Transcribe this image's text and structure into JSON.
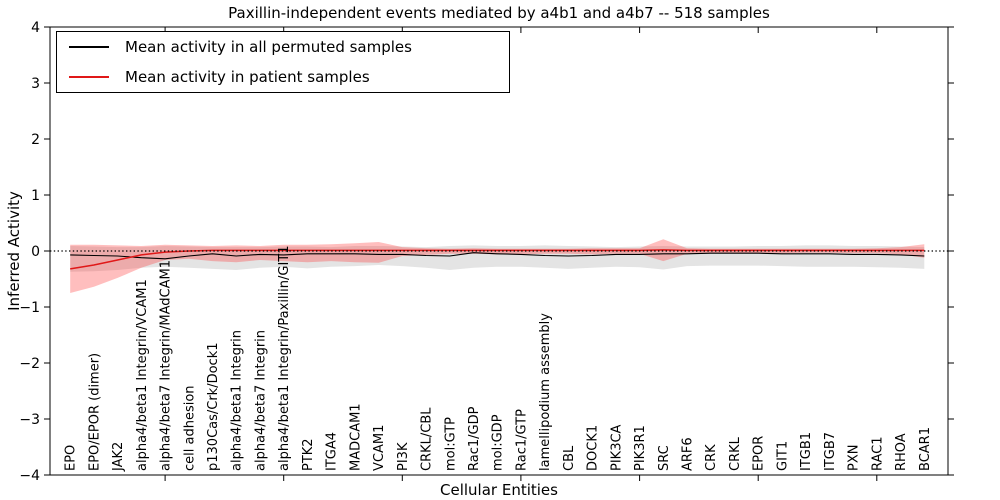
{
  "title": "Paxillin-independent events mediated by a4b1 and a4b7 -- 518 samples",
  "legend": {
    "items": [
      {
        "label": "Mean activity in all permuted samples",
        "color": "#000000"
      },
      {
        "label": "Mean activity in patient samples",
        "color": "#e01818"
      }
    ]
  },
  "chart_data": {
    "type": "line",
    "title": "Paxillin-independent events mediated by a4b1 and a4b7 -- 518 samples",
    "xlabel": "Cellular Entities",
    "ylabel": "Inferred Activity",
    "ylim": [
      -4,
      4
    ],
    "ytick_labels": [
      "4",
      "3",
      "2",
      "1",
      "0",
      "−1",
      "−2",
      "−3",
      "−4"
    ],
    "ytick_values": [
      4,
      3,
      2,
      1,
      0,
      -1,
      -2,
      -3,
      -4
    ],
    "xtick_marker_indices": [
      4,
      9,
      14,
      19,
      24,
      29,
      34
    ],
    "grid": false,
    "legend_position": "upper left",
    "zero_line": {
      "y": 0,
      "style": "dotted",
      "color": "#000000"
    },
    "categories": [
      "EPO",
      "EPO/EPOR (dimer)",
      "JAK2",
      "alpha4/beta1 Integrin/VCAM1",
      "alpha4/beta7 Integrin/MAdCAM1",
      "cell adhesion",
      "p130Cas/Crk/Dock1",
      "alpha4/beta1 Integrin",
      "alpha4/beta7 Integrin",
      "alpha4/beta1 Integrin/Paxillin/GIT1",
      "PTK2",
      "ITGA4",
      "MADCAM1",
      "VCAM1",
      "PI3K",
      "CRKL/CBL",
      "mol:GTP",
      "Rac1/GDP",
      "mol:GDP",
      "Rac1/GTP",
      "lamellipodium assembly",
      "CBL",
      "DOCK1",
      "PIK3CA",
      "PIK3R1",
      "SRC",
      "ARF6",
      "CRK",
      "CRKL",
      "EPOR",
      "GIT1",
      "ITGB1",
      "ITGB7",
      "PXN",
      "RAC1",
      "RHOA",
      "BCAR1"
    ],
    "series": [
      {
        "name": "Mean activity in all permuted samples",
        "color": "#000000",
        "width": 1.1,
        "values": [
          -0.07,
          -0.08,
          -0.09,
          -0.12,
          -0.14,
          -0.09,
          -0.05,
          -0.09,
          -0.06,
          -0.07,
          -0.05,
          -0.05,
          -0.05,
          -0.06,
          -0.06,
          -0.08,
          -0.09,
          -0.03,
          -0.05,
          -0.06,
          -0.08,
          -0.09,
          -0.08,
          -0.06,
          -0.06,
          -0.05,
          -0.05,
          -0.04,
          -0.04,
          -0.04,
          -0.05,
          -0.05,
          -0.05,
          -0.06,
          -0.06,
          -0.07,
          -0.09
        ]
      },
      {
        "name": "Mean activity in patient samples",
        "color": "#e01818",
        "width": 1.5,
        "values": [
          -0.32,
          -0.25,
          -0.16,
          -0.07,
          -0.02,
          0.0,
          0.01,
          0.01,
          0.01,
          0.01,
          0.01,
          0.01,
          0.01,
          0.01,
          0.01,
          0.01,
          0.01,
          0.01,
          0.01,
          0.01,
          0.01,
          0.01,
          0.01,
          0.01,
          0.01,
          0.02,
          0.01,
          0.01,
          0.01,
          0.01,
          0.01,
          0.01,
          0.01,
          0.01,
          0.01,
          0.01,
          0.01
        ]
      }
    ],
    "bands": [
      {
        "name": "permuted-samples-range",
        "color": "#828282",
        "opacity": 0.22,
        "upper": [
          0.09,
          0.08,
          0.07,
          0.07,
          0.09,
          0.08,
          0.07,
          0.07,
          0.07,
          0.08,
          0.08,
          0.07,
          0.09,
          0.09,
          0.08,
          0.07,
          0.09,
          0.1,
          0.09,
          0.09,
          0.1,
          0.09,
          0.08,
          0.07,
          0.08,
          0.09,
          0.08,
          0.08,
          0.08,
          0.09,
          0.09,
          0.1,
          0.1,
          0.09,
          0.09,
          0.08,
          0.07
        ],
        "lower": [
          -0.37,
          -0.36,
          -0.34,
          -0.3,
          -0.28,
          -0.3,
          -0.32,
          -0.34,
          -0.3,
          -0.28,
          -0.31,
          -0.28,
          -0.27,
          -0.25,
          -0.27,
          -0.3,
          -0.34,
          -0.3,
          -0.28,
          -0.28,
          -0.3,
          -0.32,
          -0.3,
          -0.28,
          -0.29,
          -0.33,
          -0.27,
          -0.26,
          -0.26,
          -0.26,
          -0.27,
          -0.28,
          -0.28,
          -0.28,
          -0.29,
          -0.3,
          -0.32
        ]
      },
      {
        "name": "patient-samples-range",
        "color": "#ff2828",
        "opacity": 0.3,
        "upper": [
          0.11,
          0.11,
          0.1,
          0.09,
          0.11,
          0.1,
          0.09,
          0.1,
          0.09,
          0.11,
          0.11,
          0.12,
          0.14,
          0.16,
          0.07,
          0.05,
          0.04,
          0.05,
          0.04,
          0.04,
          0.04,
          0.04,
          0.05,
          0.05,
          0.05,
          0.21,
          0.05,
          0.04,
          0.04,
          0.04,
          0.04,
          0.04,
          0.04,
          0.04,
          0.05,
          0.07,
          0.12
        ],
        "lower": [
          -0.75,
          -0.64,
          -0.48,
          -0.3,
          -0.16,
          -0.14,
          -0.18,
          -0.2,
          -0.16,
          -0.18,
          -0.2,
          -0.18,
          -0.2,
          -0.21,
          -0.09,
          -0.07,
          -0.05,
          -0.05,
          -0.06,
          -0.06,
          -0.05,
          -0.05,
          -0.06,
          -0.05,
          -0.05,
          -0.18,
          -0.05,
          -0.04,
          -0.04,
          -0.04,
          -0.04,
          -0.03,
          -0.03,
          -0.04,
          -0.04,
          -0.06,
          -0.12
        ]
      }
    ]
  }
}
